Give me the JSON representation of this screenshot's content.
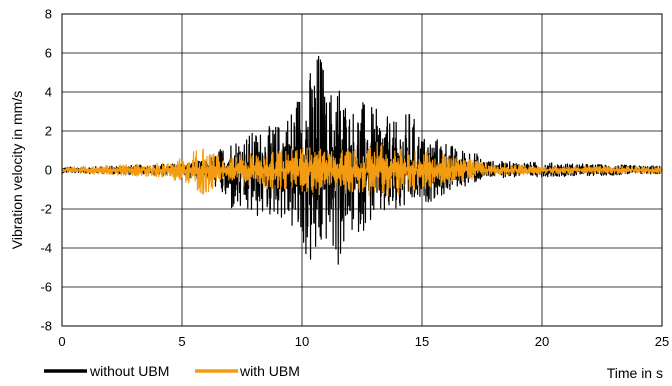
{
  "chart_data": {
    "type": "line",
    "xlabel": "Time in s",
    "ylabel": "Vibration velocity in mm/s",
    "xlim": [
      0,
      25
    ],
    "ylim": [
      -8,
      8
    ],
    "x_ticks": [
      "0",
      "5",
      "10",
      "15",
      "20",
      "25"
    ],
    "y_ticks": [
      "-8",
      "-6",
      "-4",
      "-2",
      "0",
      "2",
      "4",
      "6",
      "8"
    ],
    "grid": true,
    "legend_position": "bottom-left",
    "series": [
      {
        "name": "without UBM",
        "color": "#000000",
        "envelope_x": [
          0,
          2,
          4,
          5,
          6,
          6.5,
          7,
          8,
          9,
          9.5,
          10,
          10.5,
          10.8,
          11,
          11.5,
          12,
          12.5,
          13,
          14,
          14.5,
          15,
          16,
          16.5,
          17,
          17.5,
          18,
          20,
          22,
          25
        ],
        "envelope_max": [
          0.15,
          0.2,
          0.3,
          0.35,
          0.5,
          1.0,
          1.6,
          2.0,
          2.4,
          3.2,
          4.6,
          5.6,
          6.8,
          3.8,
          5.0,
          3.2,
          3.6,
          3.2,
          2.4,
          3.2,
          1.8,
          1.6,
          1.0,
          1.2,
          0.6,
          0.45,
          0.4,
          0.3,
          0.2
        ],
        "envelope_min": [
          -0.15,
          -0.2,
          -0.3,
          -0.35,
          -0.5,
          -1.0,
          -2.2,
          -2.6,
          -2.4,
          -3.0,
          -4.2,
          -5.6,
          -4.5,
          -3.8,
          -5.2,
          -3.5,
          -3.2,
          -2.6,
          -2.4,
          -1.9,
          -1.8,
          -1.3,
          -0.9,
          -0.8,
          -0.5,
          -0.4,
          -0.35,
          -0.3,
          -0.2
        ]
      },
      {
        "name": "with UBM",
        "color": "#f39c12",
        "envelope_x": [
          0,
          2,
          4,
          5,
          5.5,
          6,
          6.5,
          7,
          8,
          9,
          10,
          11,
          12,
          13,
          14,
          15,
          16,
          17,
          17.5,
          18,
          20,
          22,
          25
        ],
        "envelope_max": [
          0.15,
          0.25,
          0.35,
          0.6,
          1.0,
          1.2,
          0.8,
          0.7,
          0.9,
          1.0,
          1.2,
          1.3,
          1.2,
          1.5,
          1.1,
          1.0,
          0.8,
          0.6,
          0.4,
          0.3,
          0.2,
          0.2,
          0.15
        ],
        "envelope_min": [
          -0.15,
          -0.25,
          -0.35,
          -0.6,
          -0.9,
          -1.4,
          -0.8,
          -0.7,
          -0.9,
          -1.0,
          -1.2,
          -1.3,
          -1.2,
          -1.4,
          -1.3,
          -1.0,
          -0.8,
          -0.6,
          -0.4,
          -0.3,
          -0.2,
          -0.2,
          -0.15
        ]
      }
    ]
  }
}
